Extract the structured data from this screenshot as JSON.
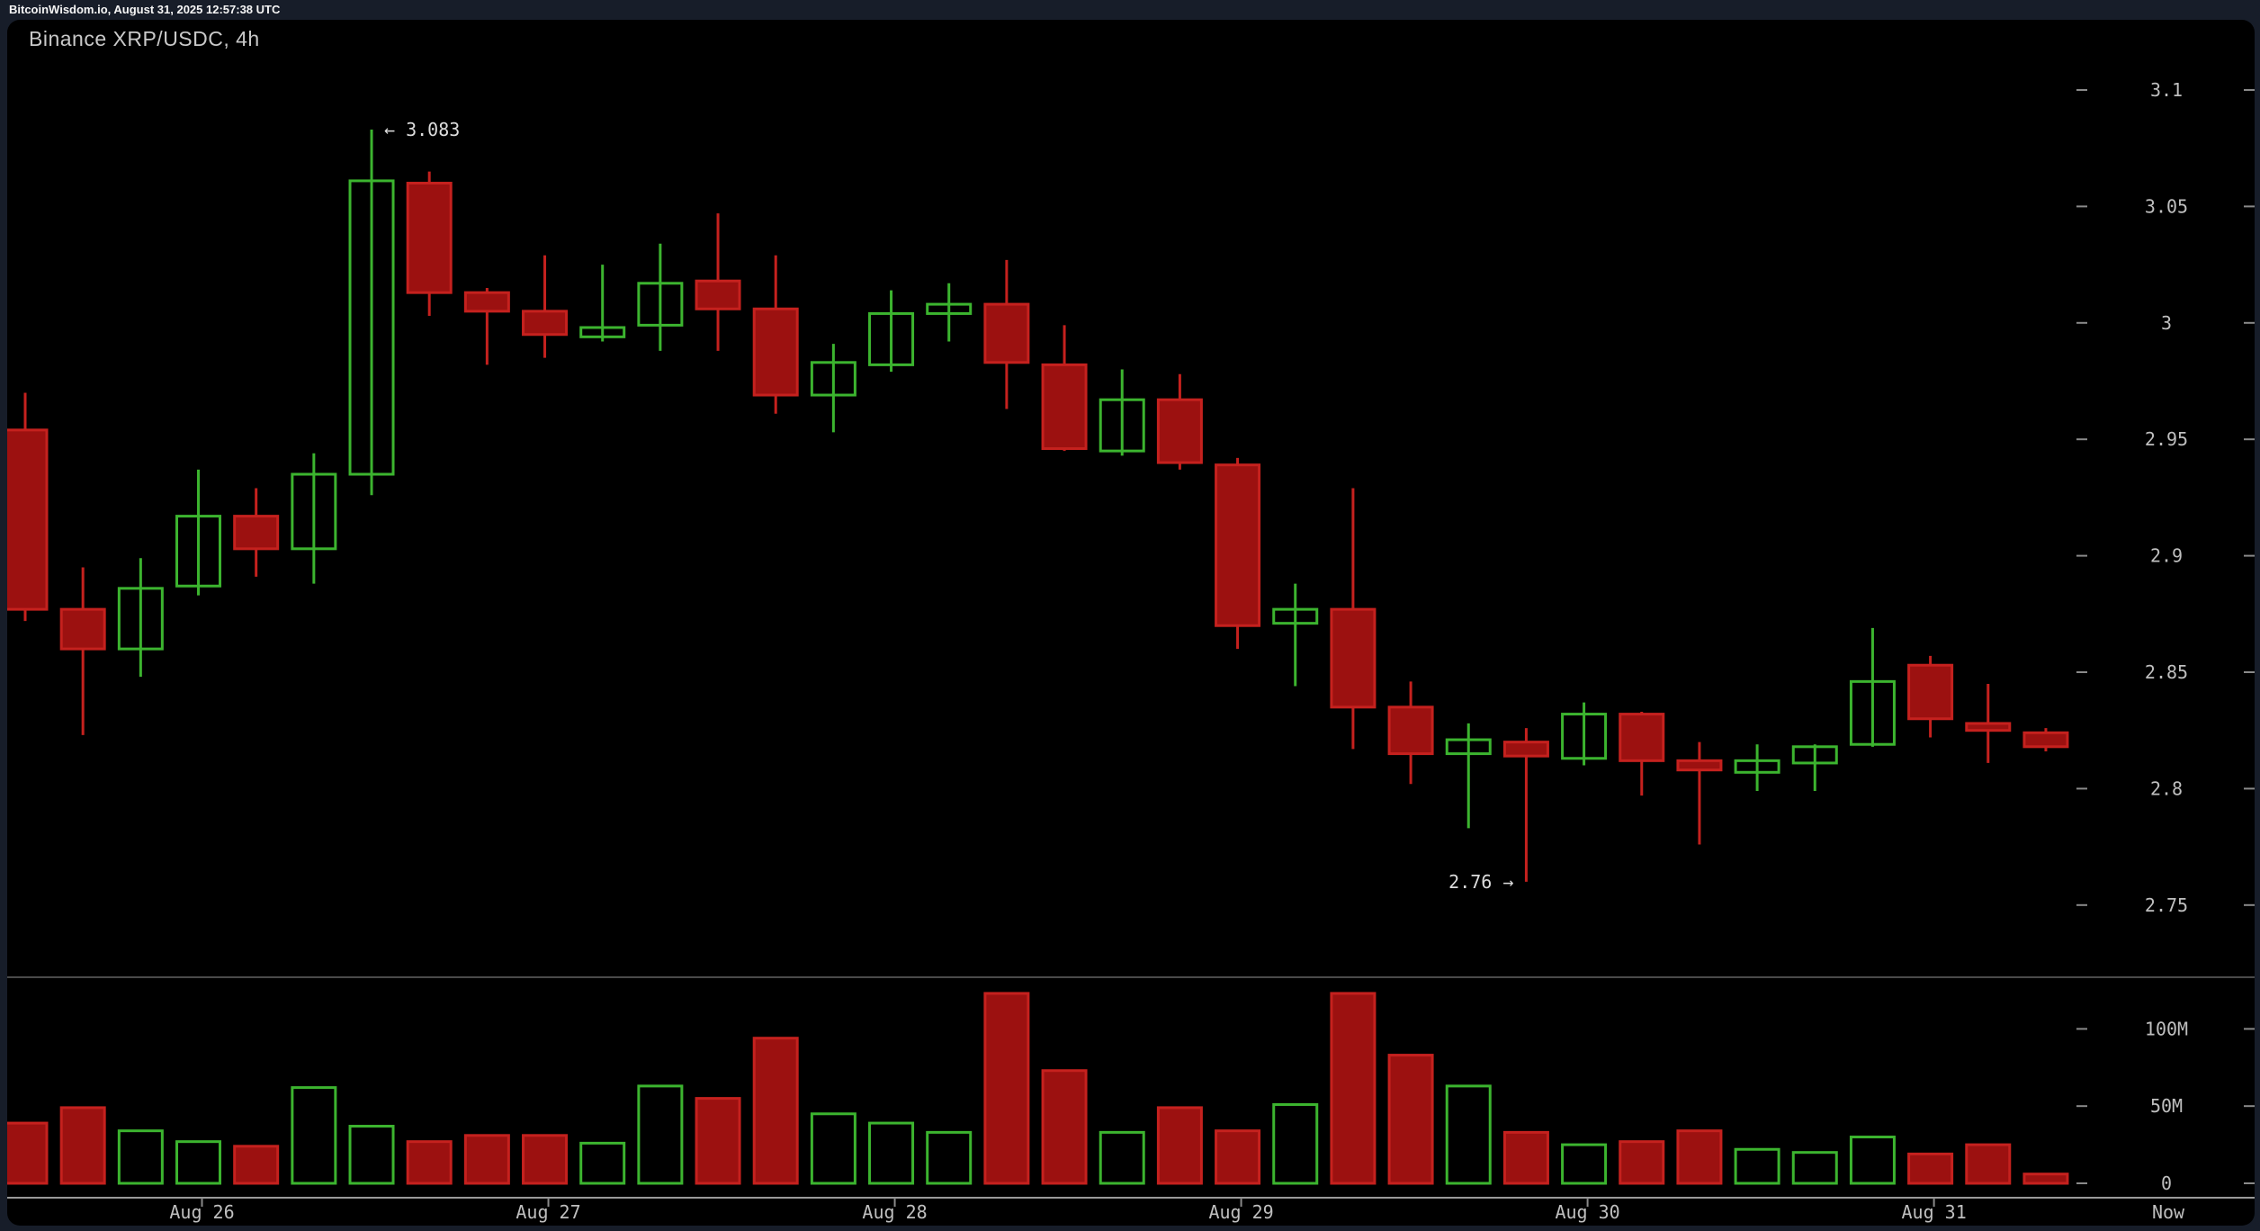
{
  "header": {
    "status_text": "BitcoinWisdom.io, August 31, 2025 12:57:38 UTC"
  },
  "chart": {
    "title": "Binance XRP/USDC, 4h",
    "colors": {
      "up": "#3cb42f",
      "down_fill": "#9c1110",
      "down_border": "#c5211e",
      "axis_text": "#bfbfbf",
      "tick_dash": "#8a8a8a",
      "pane_separator": "#4a4a4a",
      "axis_baseline": "#9a9a9a",
      "annotation_text": "#dcdcdc",
      "chart_background": "#000000",
      "page_background": "#171d29"
    }
  },
  "chart_data": {
    "type": "candlestick",
    "title": "Binance XRP/USDC, 4h",
    "legend_position": "none",
    "grid": false,
    "price_axis": {
      "side": "right",
      "ticks": [
        {
          "label": "3.1",
          "value": 3.1
        },
        {
          "label": "3.05",
          "value": 3.05
        },
        {
          "label": "3",
          "value": 3.0
        },
        {
          "label": "2.95",
          "value": 2.95
        },
        {
          "label": "2.9",
          "value": 2.9
        },
        {
          "label": "2.85",
          "value": 2.85
        },
        {
          "label": "2.8",
          "value": 2.8
        },
        {
          "label": "2.75",
          "value": 2.75
        }
      ],
      "ylim": [
        2.72,
        3.13
      ]
    },
    "volume_axis": {
      "side": "right",
      "unit": "M",
      "ticks": [
        {
          "label": "100M",
          "value": 100
        },
        {
          "label": "50M",
          "value": 50
        },
        {
          "label": "0",
          "value": 0
        }
      ],
      "ylim": [
        0,
        133
      ]
    },
    "x_axis": {
      "ticks": [
        {
          "label": "Aug 26",
          "candle_index": 3
        },
        {
          "label": "Aug 27",
          "candle_index": 9
        },
        {
          "label": "Aug 28",
          "candle_index": 15
        },
        {
          "label": "Aug 29",
          "candle_index": 21
        },
        {
          "label": "Aug 30",
          "candle_index": 27
        },
        {
          "label": "Aug 31",
          "candle_index": 33
        }
      ],
      "now_label": "Now"
    },
    "candles": [
      {
        "o": 2.954,
        "h": 2.97,
        "l": 2.872,
        "c": 2.877,
        "v": 39
      },
      {
        "o": 2.877,
        "h": 2.895,
        "l": 2.823,
        "c": 2.86,
        "v": 49
      },
      {
        "o": 2.86,
        "h": 2.899,
        "l": 2.848,
        "c": 2.886,
        "v": 34
      },
      {
        "o": 2.887,
        "h": 2.937,
        "l": 2.883,
        "c": 2.917,
        "v": 27
      },
      {
        "o": 2.917,
        "h": 2.929,
        "l": 2.891,
        "c": 2.903,
        "v": 24
      },
      {
        "o": 2.903,
        "h": 2.944,
        "l": 2.888,
        "c": 2.935,
        "v": 62
      },
      {
        "o": 2.935,
        "h": 3.083,
        "l": 2.926,
        "c": 3.061,
        "v": 37
      },
      {
        "o": 3.06,
        "h": 3.065,
        "l": 3.003,
        "c": 3.013,
        "v": 27
      },
      {
        "o": 3.013,
        "h": 3.015,
        "l": 2.982,
        "c": 3.005,
        "v": 31
      },
      {
        "o": 3.005,
        "h": 3.029,
        "l": 2.985,
        "c": 2.995,
        "v": 31
      },
      {
        "o": 2.994,
        "h": 3.025,
        "l": 2.992,
        "c": 2.998,
        "v": 26
      },
      {
        "o": 2.999,
        "h": 3.034,
        "l": 2.988,
        "c": 3.017,
        "v": 63
      },
      {
        "o": 3.018,
        "h": 3.047,
        "l": 2.988,
        "c": 3.006,
        "v": 55
      },
      {
        "o": 3.006,
        "h": 3.029,
        "l": 2.961,
        "c": 2.969,
        "v": 94
      },
      {
        "o": 2.969,
        "h": 2.991,
        "l": 2.953,
        "c": 2.983,
        "v": 45
      },
      {
        "o": 2.982,
        "h": 3.014,
        "l": 2.979,
        "c": 3.004,
        "v": 39
      },
      {
        "o": 3.004,
        "h": 3.017,
        "l": 2.992,
        "c": 3.008,
        "v": 33
      },
      {
        "o": 3.008,
        "h": 3.027,
        "l": 2.963,
        "c": 2.983,
        "v": 123
      },
      {
        "o": 2.982,
        "h": 2.999,
        "l": 2.945,
        "c": 2.946,
        "v": 73
      },
      {
        "o": 2.945,
        "h": 2.98,
        "l": 2.943,
        "c": 2.967,
        "v": 33
      },
      {
        "o": 2.967,
        "h": 2.978,
        "l": 2.937,
        "c": 2.94,
        "v": 49
      },
      {
        "o": 2.939,
        "h": 2.942,
        "l": 2.86,
        "c": 2.87,
        "v": 34
      },
      {
        "o": 2.871,
        "h": 2.888,
        "l": 2.844,
        "c": 2.877,
        "v": 51
      },
      {
        "o": 2.877,
        "h": 2.929,
        "l": 2.817,
        "c": 2.835,
        "v": 123
      },
      {
        "o": 2.835,
        "h": 2.846,
        "l": 2.802,
        "c": 2.815,
        "v": 83
      },
      {
        "o": 2.815,
        "h": 2.828,
        "l": 2.783,
        "c": 2.821,
        "v": 63
      },
      {
        "o": 2.82,
        "h": 2.826,
        "l": 2.76,
        "c": 2.814,
        "v": 33
      },
      {
        "o": 2.813,
        "h": 2.837,
        "l": 2.81,
        "c": 2.832,
        "v": 25
      },
      {
        "o": 2.832,
        "h": 2.833,
        "l": 2.797,
        "c": 2.812,
        "v": 27
      },
      {
        "o": 2.812,
        "h": 2.82,
        "l": 2.776,
        "c": 2.808,
        "v": 34
      },
      {
        "o": 2.807,
        "h": 2.819,
        "l": 2.799,
        "c": 2.812,
        "v": 22
      },
      {
        "o": 2.811,
        "h": 2.819,
        "l": 2.799,
        "c": 2.818,
        "v": 20
      },
      {
        "o": 2.819,
        "h": 2.869,
        "l": 2.818,
        "c": 2.846,
        "v": 30
      },
      {
        "o": 2.853,
        "h": 2.857,
        "l": 2.822,
        "c": 2.83,
        "v": 19
      },
      {
        "o": 2.828,
        "h": 2.845,
        "l": 2.811,
        "c": 2.825,
        "v": 25
      },
      {
        "o": 2.824,
        "h": 2.826,
        "l": 2.816,
        "c": 2.818,
        "v": 6
      }
    ],
    "annotations": [
      {
        "text": "← 3.083",
        "candle_index": 6,
        "price": 3.083,
        "position": "right-of-high"
      },
      {
        "text": "2.76 →",
        "candle_index": 26,
        "price": 2.76,
        "position": "left-of-low"
      }
    ]
  }
}
